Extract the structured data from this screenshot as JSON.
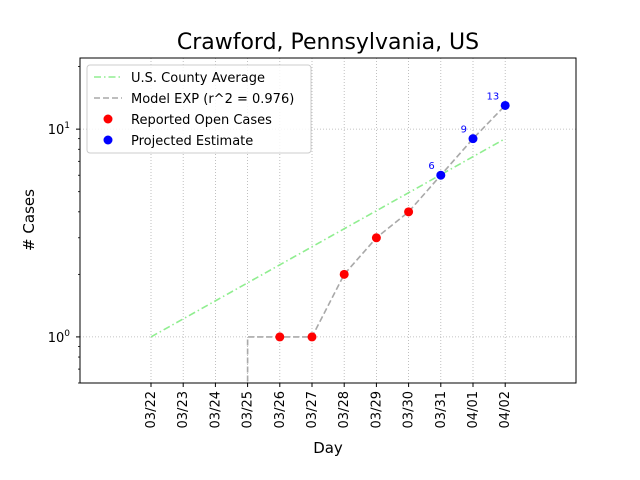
{
  "chart_data": {
    "type": "line",
    "title": "Crawford, Pennsylvania, US",
    "xlabel": "Day",
    "ylabel": "# Cases",
    "y_scale": "log",
    "ylim": [
      0.6,
      22
    ],
    "y_ticks": [
      {
        "value": 1,
        "base": "10",
        "exp": "0"
      },
      {
        "value": 10,
        "base": "10",
        "exp": "1"
      }
    ],
    "categories": [
      "03/22",
      "03/23",
      "03/24",
      "03/25",
      "03/26",
      "03/27",
      "03/28",
      "03/29",
      "03/30",
      "03/31",
      "04/01",
      "04/02"
    ],
    "grid": true,
    "legend_position": "top-left",
    "series": [
      {
        "name": "U.S. County Average",
        "style": "dash-dot",
        "color": "#90ee90",
        "x": [
          "03/22",
          "04/02"
        ],
        "y": [
          1.0,
          9.0
        ]
      },
      {
        "name": "Model EXP (r^2 = 0.976)",
        "style": "dashed",
        "color": "#a9a9a9",
        "x": [
          "03/25",
          "03/25",
          "03/26",
          "03/27",
          "03/28",
          "03/29",
          "03/30",
          "03/31",
          "04/01",
          "04/02"
        ],
        "y": [
          0.5,
          1,
          1,
          1,
          2,
          3,
          4,
          6,
          9,
          13
        ]
      },
      {
        "name": "Reported Open Cases",
        "style": "markers",
        "color": "#ff0000",
        "x": [
          "03/26",
          "03/27",
          "03/28",
          "03/29",
          "03/30"
        ],
        "y": [
          1,
          1,
          2,
          3,
          4
        ]
      },
      {
        "name": "Projected Estimate",
        "style": "markers",
        "color": "#0000ff",
        "x": [
          "03/31",
          "04/01",
          "04/02"
        ],
        "y": [
          6,
          9,
          13
        ],
        "labels": [
          "6",
          "9",
          "13"
        ]
      }
    ]
  }
}
